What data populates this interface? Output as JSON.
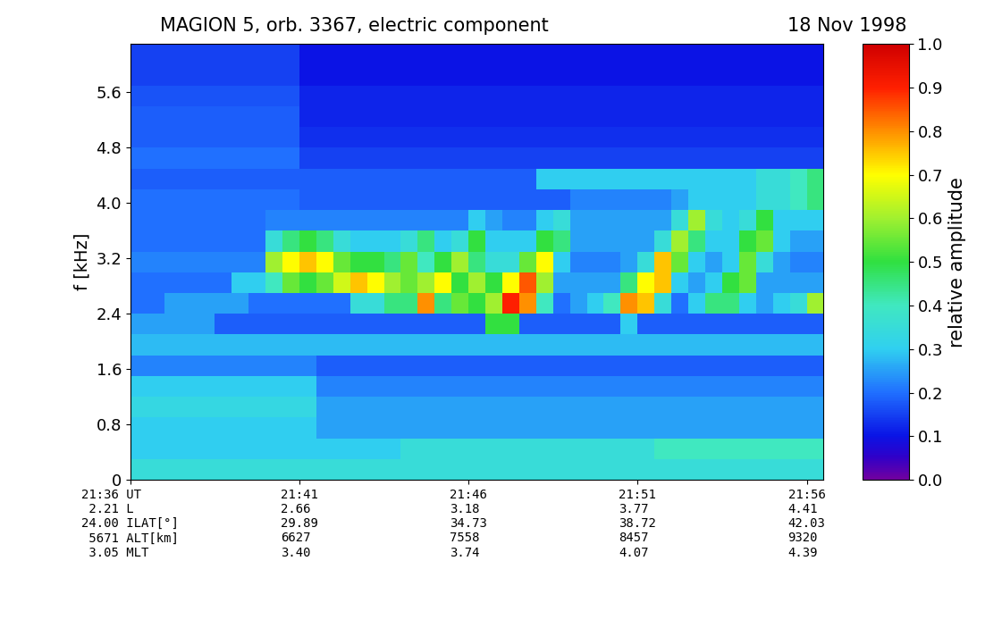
{
  "chart_data": {
    "type": "heatmap",
    "title": "MAGION 5, orb. 3367, electric component",
    "subtitle": "18 Nov 1998",
    "ylabel": "f [kHz]",
    "time_edges": [
      1296,
      1296.5,
      1297,
      1297.5,
      1298,
      1298.5,
      1299,
      1299.5,
      1300,
      1300.5,
      1301,
      1301.5,
      1302,
      1302.5,
      1303,
      1303.5,
      1304,
      1304.5,
      1305,
      1305.5,
      1306,
      1306.5,
      1307,
      1307.5,
      1308,
      1308.5,
      1309,
      1309.5,
      1310,
      1310.5,
      1311,
      1311.5,
      1312,
      1312.5,
      1313,
      1313.5,
      1314,
      1314.5,
      1315,
      1315.5,
      1316,
      1316.5
    ],
    "freq_edges": [
      0,
      0.3,
      0.6,
      0.9,
      1.2,
      1.5,
      1.8,
      2.1,
      2.4,
      2.7,
      3.0,
      3.3,
      3.6,
      3.9,
      4.2,
      4.5,
      4.8,
      5.1,
      5.4,
      5.7,
      6.0,
      6.3
    ],
    "values": [
      [
        0.35,
        0.35,
        0.35,
        0.35,
        0.35,
        0.35,
        0.35,
        0.35,
        0.35,
        0.35,
        0.35,
        0.35,
        0.35,
        0.35,
        0.35,
        0.35,
        0.35,
        0.35,
        0.35,
        0.35,
        0.35,
        0.35,
        0.35,
        0.35,
        0.35,
        0.35,
        0.35,
        0.35,
        0.35,
        0.35,
        0.35,
        0.35,
        0.35,
        0.35,
        0.35,
        0.35,
        0.35,
        0.35,
        0.35,
        0.35,
        0.35
      ],
      [
        0.3,
        0.3,
        0.3,
        0.3,
        0.3,
        0.3,
        0.3,
        0.3,
        0.3,
        0.3,
        0.3,
        0.3,
        0.3,
        0.3,
        0.3,
        0.3,
        0.35,
        0.35,
        0.35,
        0.35,
        0.35,
        0.35,
        0.35,
        0.35,
        0.35,
        0.35,
        0.35,
        0.35,
        0.35,
        0.35,
        0.35,
        0.4,
        0.4,
        0.4,
        0.4,
        0.4,
        0.4,
        0.4,
        0.4,
        0.4,
        0.4
      ],
      [
        0.3,
        0.3,
        0.3,
        0.3,
        0.3,
        0.3,
        0.3,
        0.3,
        0.3,
        0.3,
        0.3,
        0.25,
        0.25,
        0.25,
        0.25,
        0.25,
        0.25,
        0.25,
        0.25,
        0.25,
        0.25,
        0.25,
        0.25,
        0.25,
        0.25,
        0.25,
        0.25,
        0.25,
        0.25,
        0.25,
        0.25,
        0.25,
        0.25,
        0.25,
        0.25,
        0.25,
        0.25,
        0.25,
        0.25,
        0.25,
        0.25
      ],
      [
        0.33,
        0.33,
        0.33,
        0.33,
        0.33,
        0.33,
        0.33,
        0.33,
        0.33,
        0.33,
        0.33,
        0.25,
        0.25,
        0.25,
        0.25,
        0.25,
        0.25,
        0.25,
        0.25,
        0.25,
        0.25,
        0.25,
        0.25,
        0.25,
        0.25,
        0.25,
        0.25,
        0.25,
        0.25,
        0.25,
        0.25,
        0.25,
        0.25,
        0.25,
        0.25,
        0.25,
        0.25,
        0.25,
        0.25,
        0.25,
        0.25
      ],
      [
        0.3,
        0.3,
        0.3,
        0.3,
        0.3,
        0.3,
        0.3,
        0.3,
        0.3,
        0.3,
        0.3,
        0.22,
        0.22,
        0.22,
        0.22,
        0.22,
        0.22,
        0.22,
        0.22,
        0.22,
        0.22,
        0.22,
        0.22,
        0.22,
        0.22,
        0.22,
        0.22,
        0.22,
        0.22,
        0.22,
        0.22,
        0.22,
        0.22,
        0.22,
        0.22,
        0.22,
        0.22,
        0.22,
        0.22,
        0.22,
        0.22
      ],
      [
        0.22,
        0.22,
        0.22,
        0.22,
        0.22,
        0.22,
        0.22,
        0.22,
        0.22,
        0.22,
        0.22,
        0.18,
        0.18,
        0.18,
        0.18,
        0.18,
        0.18,
        0.18,
        0.18,
        0.18,
        0.18,
        0.18,
        0.18,
        0.18,
        0.18,
        0.18,
        0.18,
        0.18,
        0.18,
        0.18,
        0.18,
        0.18,
        0.18,
        0.18,
        0.18,
        0.18,
        0.18,
        0.18,
        0.18,
        0.18,
        0.18
      ],
      [
        0.28,
        0.28,
        0.28,
        0.28,
        0.28,
        0.28,
        0.28,
        0.28,
        0.28,
        0.28,
        0.28,
        0.28,
        0.28,
        0.28,
        0.28,
        0.28,
        0.28,
        0.28,
        0.28,
        0.28,
        0.28,
        0.28,
        0.28,
        0.28,
        0.28,
        0.28,
        0.28,
        0.28,
        0.28,
        0.28,
        0.28,
        0.28,
        0.28,
        0.28,
        0.28,
        0.28,
        0.28,
        0.28,
        0.28,
        0.28,
        0.28
      ],
      [
        0.25,
        0.25,
        0.25,
        0.25,
        0.25,
        0.18,
        0.18,
        0.18,
        0.18,
        0.18,
        0.18,
        0.18,
        0.18,
        0.18,
        0.18,
        0.18,
        0.18,
        0.18,
        0.18,
        0.18,
        0.18,
        0.5,
        0.5,
        0.18,
        0.18,
        0.18,
        0.18,
        0.18,
        0.18,
        0.3,
        0.18,
        0.18,
        0.18,
        0.18,
        0.18,
        0.18,
        0.18,
        0.18,
        0.18,
        0.18,
        0.18
      ],
      [
        0.2,
        0.2,
        0.25,
        0.25,
        0.25,
        0.25,
        0.25,
        0.2,
        0.2,
        0.2,
        0.2,
        0.2,
        0.2,
        0.35,
        0.35,
        0.45,
        0.45,
        0.8,
        0.45,
        0.55,
        0.5,
        0.6,
        0.9,
        0.8,
        0.4,
        0.2,
        0.25,
        0.3,
        0.4,
        0.8,
        0.75,
        0.35,
        0.2,
        0.3,
        0.45,
        0.45,
        0.3,
        0.25,
        0.3,
        0.35,
        0.6
      ],
      [
        0.2,
        0.2,
        0.2,
        0.2,
        0.2,
        0.2,
        0.3,
        0.3,
        0.4,
        0.55,
        0.5,
        0.55,
        0.65,
        0.75,
        0.7,
        0.6,
        0.55,
        0.6,
        0.7,
        0.5,
        0.6,
        0.5,
        0.7,
        0.85,
        0.6,
        0.25,
        0.25,
        0.25,
        0.25,
        0.45,
        0.7,
        0.75,
        0.3,
        0.25,
        0.3,
        0.5,
        0.55,
        0.25,
        0.25,
        0.25,
        0.25
      ],
      [
        0.22,
        0.22,
        0.22,
        0.22,
        0.22,
        0.22,
        0.22,
        0.22,
        0.6,
        0.7,
        0.75,
        0.7,
        0.55,
        0.5,
        0.5,
        0.45,
        0.55,
        0.4,
        0.5,
        0.6,
        0.45,
        0.35,
        0.35,
        0.55,
        0.7,
        0.3,
        0.22,
        0.22,
        0.22,
        0.25,
        0.35,
        0.75,
        0.55,
        0.3,
        0.25,
        0.3,
        0.55,
        0.35,
        0.25,
        0.22,
        0.22
      ],
      [
        0.2,
        0.2,
        0.2,
        0.2,
        0.2,
        0.2,
        0.2,
        0.2,
        0.35,
        0.45,
        0.5,
        0.45,
        0.35,
        0.3,
        0.3,
        0.3,
        0.35,
        0.45,
        0.3,
        0.35,
        0.5,
        0.3,
        0.3,
        0.3,
        0.5,
        0.45,
        0.25,
        0.25,
        0.25,
        0.25,
        0.25,
        0.35,
        0.6,
        0.45,
        0.3,
        0.3,
        0.5,
        0.55,
        0.3,
        0.25,
        0.25
      ],
      [
        0.2,
        0.2,
        0.2,
        0.2,
        0.2,
        0.2,
        0.2,
        0.2,
        0.22,
        0.22,
        0.22,
        0.22,
        0.22,
        0.22,
        0.22,
        0.22,
        0.22,
        0.22,
        0.22,
        0.22,
        0.3,
        0.25,
        0.22,
        0.22,
        0.3,
        0.35,
        0.25,
        0.25,
        0.25,
        0.25,
        0.25,
        0.25,
        0.35,
        0.6,
        0.35,
        0.3,
        0.35,
        0.5,
        0.3,
        0.3,
        0.3
      ],
      [
        0.2,
        0.2,
        0.2,
        0.2,
        0.2,
        0.2,
        0.2,
        0.2,
        0.2,
        0.2,
        0.18,
        0.18,
        0.18,
        0.18,
        0.18,
        0.18,
        0.18,
        0.18,
        0.18,
        0.18,
        0.18,
        0.18,
        0.18,
        0.18,
        0.18,
        0.18,
        0.22,
        0.22,
        0.22,
        0.22,
        0.22,
        0.22,
        0.25,
        0.3,
        0.3,
        0.3,
        0.3,
        0.35,
        0.35,
        0.4,
        0.45
      ],
      [
        0.18,
        0.18,
        0.18,
        0.18,
        0.18,
        0.18,
        0.18,
        0.18,
        0.18,
        0.18,
        0.18,
        0.18,
        0.18,
        0.18,
        0.18,
        0.18,
        0.18,
        0.18,
        0.18,
        0.18,
        0.18,
        0.18,
        0.18,
        0.18,
        0.3,
        0.3,
        0.3,
        0.3,
        0.3,
        0.3,
        0.3,
        0.3,
        0.3,
        0.3,
        0.3,
        0.3,
        0.3,
        0.35,
        0.35,
        0.4,
        0.45
      ],
      [
        0.2,
        0.2,
        0.2,
        0.2,
        0.2,
        0.2,
        0.2,
        0.2,
        0.2,
        0.2,
        0.15,
        0.15,
        0.15,
        0.15,
        0.15,
        0.15,
        0.15,
        0.15,
        0.15,
        0.15,
        0.15,
        0.15,
        0.15,
        0.15,
        0.15,
        0.15,
        0.15,
        0.15,
        0.15,
        0.15,
        0.15,
        0.15,
        0.15,
        0.15,
        0.15,
        0.15,
        0.15,
        0.15,
        0.15,
        0.15,
        0.15
      ],
      [
        0.18,
        0.18,
        0.18,
        0.18,
        0.18,
        0.18,
        0.18,
        0.18,
        0.18,
        0.18,
        0.13,
        0.13,
        0.13,
        0.13,
        0.13,
        0.13,
        0.13,
        0.13,
        0.13,
        0.13,
        0.13,
        0.13,
        0.13,
        0.13,
        0.13,
        0.13,
        0.13,
        0.13,
        0.13,
        0.13,
        0.13,
        0.13,
        0.13,
        0.13,
        0.13,
        0.13,
        0.13,
        0.13,
        0.13,
        0.13,
        0.13
      ],
      [
        0.18,
        0.18,
        0.18,
        0.18,
        0.18,
        0.18,
        0.18,
        0.18,
        0.18,
        0.18,
        0.12,
        0.12,
        0.12,
        0.12,
        0.12,
        0.12,
        0.12,
        0.12,
        0.12,
        0.12,
        0.12,
        0.12,
        0.12,
        0.12,
        0.12,
        0.12,
        0.12,
        0.12,
        0.12,
        0.12,
        0.12,
        0.12,
        0.12,
        0.12,
        0.12,
        0.12,
        0.12,
        0.12,
        0.12,
        0.12,
        0.12
      ],
      [
        0.17,
        0.17,
        0.17,
        0.17,
        0.17,
        0.17,
        0.17,
        0.17,
        0.17,
        0.17,
        0.12,
        0.12,
        0.12,
        0.12,
        0.12,
        0.12,
        0.12,
        0.12,
        0.12,
        0.12,
        0.12,
        0.12,
        0.12,
        0.12,
        0.12,
        0.12,
        0.12,
        0.12,
        0.12,
        0.12,
        0.12,
        0.12,
        0.12,
        0.12,
        0.12,
        0.12,
        0.12,
        0.12,
        0.12,
        0.12,
        0.12
      ],
      [
        0.15,
        0.15,
        0.15,
        0.15,
        0.15,
        0.15,
        0.15,
        0.15,
        0.15,
        0.15,
        0.1,
        0.1,
        0.1,
        0.1,
        0.1,
        0.1,
        0.1,
        0.1,
        0.1,
        0.1,
        0.1,
        0.1,
        0.1,
        0.1,
        0.1,
        0.1,
        0.1,
        0.1,
        0.1,
        0.1,
        0.1,
        0.1,
        0.1,
        0.1,
        0.1,
        0.1,
        0.1,
        0.1,
        0.1,
        0.1,
        0.1
      ],
      [
        0.15,
        0.15,
        0.15,
        0.15,
        0.15,
        0.15,
        0.15,
        0.15,
        0.15,
        0.15,
        0.1,
        0.1,
        0.1,
        0.1,
        0.1,
        0.1,
        0.1,
        0.1,
        0.1,
        0.1,
        0.1,
        0.1,
        0.1,
        0.1,
        0.1,
        0.1,
        0.1,
        0.1,
        0.1,
        0.1,
        0.1,
        0.1,
        0.1,
        0.1,
        0.1,
        0.1,
        0.1,
        0.1,
        0.1,
        0.1,
        0.1
      ]
    ],
    "xlim": [
      1296,
      1316.5
    ],
    "ylim": [
      0,
      6.3
    ],
    "xticks": [
      {
        "value": 1296,
        "label": "21:36 UT\n 2.21 L\n24.00 ILAT[°]\n 5671 ALT[km]\n 3.05 MLT"
      },
      {
        "value": 1301,
        "label": "21:41\n2.66\n29.89\n6627\n3.40"
      },
      {
        "value": 1306,
        "label": "21:46\n3.18\n34.73\n7558\n3.74"
      },
      {
        "value": 1311,
        "label": "21:51\n3.77\n38.72\n8457\n4.07"
      },
      {
        "value": 1316,
        "label": "21:56\n4.41\n42.03\n9320\n4.39"
      }
    ],
    "yticks": [
      0,
      0.8,
      1.6,
      2.4,
      3.2,
      4.0,
      4.8,
      5.6
    ],
    "colorbar_range": [
      0.0,
      1.0
    ],
    "colorbar_ticks": [
      0.0,
      0.1,
      0.2,
      0.3,
      0.4,
      0.5,
      0.6,
      0.7,
      0.8,
      0.9,
      1.0
    ],
    "colorbar_label": "relative amplitude",
    "grid": false
  }
}
